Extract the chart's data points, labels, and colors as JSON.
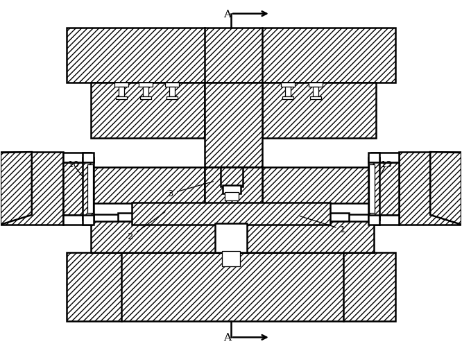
{
  "bg_color": "#ffffff",
  "lw": 1.8,
  "lw_thin": 0.9,
  "lc": "#000000",
  "fig_w": 6.66,
  "fig_h": 5.1,
  "dpi": 100
}
